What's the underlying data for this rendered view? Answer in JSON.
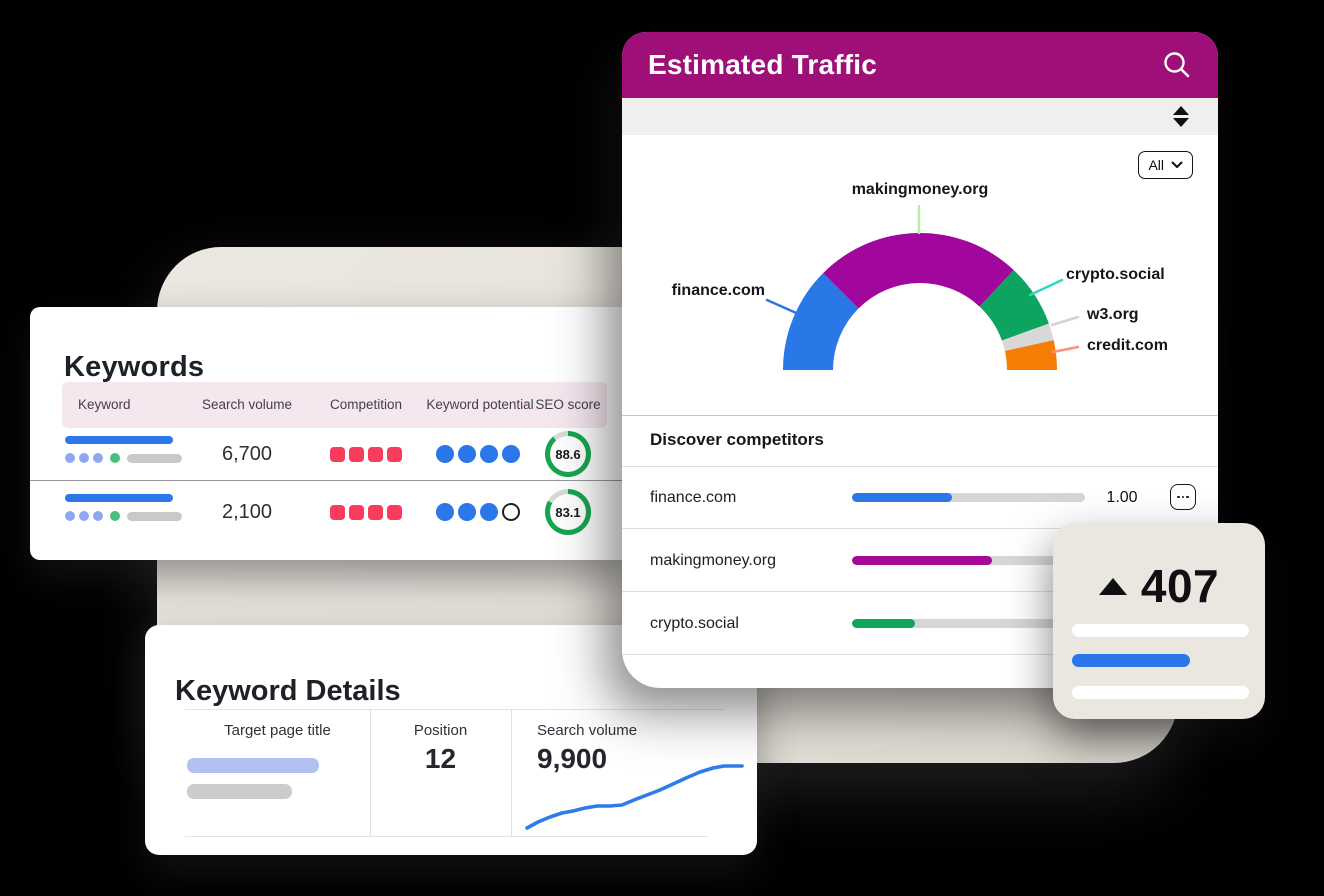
{
  "keywords": {
    "title": "Keywords",
    "columns": [
      "Keyword",
      "Search volume",
      "Competition",
      "Keyword potential",
      "SEO score"
    ],
    "rows": [
      {
        "search_volume": "6,700",
        "competition_level": 4,
        "competition_max": 4,
        "potential_filled": 4,
        "potential_max": 4,
        "seo_score": "88.6",
        "seo_score_pct": 88.6
      },
      {
        "search_volume": "2,100",
        "competition_level": 4,
        "competition_max": 4,
        "potential_filled": 3,
        "potential_max": 4,
        "seo_score": "83.1",
        "seo_score_pct": 83.1
      }
    ]
  },
  "traffic": {
    "title": "Estimated Traffic",
    "filter": {
      "selected": "All"
    },
    "competitors": {
      "heading": "Discover competitors",
      "rows": [
        {
          "name": "finance.com",
          "bar_pct": 43,
          "bar_color": "#2b76e8",
          "value": "1.00",
          "has_menu": true
        },
        {
          "name": "makingmoney.org",
          "bar_pct": 60,
          "bar_color": "#a40a96",
          "value": "",
          "has_menu": false
        },
        {
          "name": "crypto.social",
          "bar_pct": 27,
          "bar_color": "#0fa45c",
          "value": "",
          "has_menu": false
        }
      ]
    }
  },
  "details": {
    "title": "Keyword Details",
    "target_page": {
      "label": "Target page title"
    },
    "position": {
      "label": "Position",
      "value": "12"
    },
    "search_volume": {
      "label": "Search volume",
      "value": "9,900"
    }
  },
  "badge": {
    "value": "407",
    "direction": "up"
  },
  "icons": {
    "header": "search-icon",
    "strip": "sort-arrows-icon",
    "filter": "chevron-down-icon",
    "row_menu": "ellipsis-icon",
    "badge": "triangle-up-icon"
  },
  "colors": {
    "header_magenta": "#9e1078",
    "competition": "#f93b5c",
    "potential": "#2b76e8",
    "score_ring": "#17a64e",
    "score_track": "#d9d9d9",
    "beige_shape": "#e6e2db",
    "line_blue": "#2e7cea"
  },
  "chart_data": [
    {
      "type": "pie",
      "variant": "half-donut",
      "title": "Estimated Traffic share by domain",
      "legend_position": "callout-labels",
      "unit": "percent",
      "total": 100,
      "segments": [
        {
          "label": "finance.com",
          "value": 25,
          "color": "#2a77e8",
          "leader_color": "#2a77e8"
        },
        {
          "label": "makingmoney.org",
          "value": 49,
          "color": "#a1079c",
          "leader_color": "#b7ef9d"
        },
        {
          "label": "crypto.social",
          "value": 15,
          "color": "#0ca45f",
          "leader_color": "#2fd9c0"
        },
        {
          "label": "w3.org",
          "value": 4,
          "color": "#d8d8d8",
          "leader_color": "#d2d2d2"
        },
        {
          "label": "credit.com",
          "value": 7,
          "color": "#f57d05",
          "leader_color": "#ff8f79"
        }
      ]
    },
    {
      "type": "line",
      "title": "Search volume trend",
      "value_label": "9,900",
      "color": "#2e7cea",
      "axes": "none",
      "points": [
        [
          27,
          91
        ],
        [
          38,
          85
        ],
        [
          50,
          80
        ],
        [
          62,
          76
        ],
        [
          73,
          74
        ],
        [
          85,
          71
        ],
        [
          97,
          69
        ],
        [
          110,
          69
        ],
        [
          122,
          68
        ],
        [
          134,
          63
        ],
        [
          147,
          58
        ],
        [
          160,
          53
        ],
        [
          173,
          47
        ],
        [
          186,
          41
        ],
        [
          200,
          35
        ],
        [
          213,
          31
        ],
        [
          224,
          29
        ],
        [
          242,
          29
        ]
      ]
    },
    {
      "type": "bar",
      "title": "Discover competitors",
      "orientation": "horizontal",
      "categories": [
        "finance.com",
        "makingmoney.org",
        "crypto.social"
      ],
      "values": [
        43,
        60,
        27
      ],
      "unit": "percent-of-track",
      "colors": [
        "#2b76e8",
        "#a40a96",
        "#0fa45c"
      ],
      "annotations": [
        "1.00"
      ]
    }
  ]
}
